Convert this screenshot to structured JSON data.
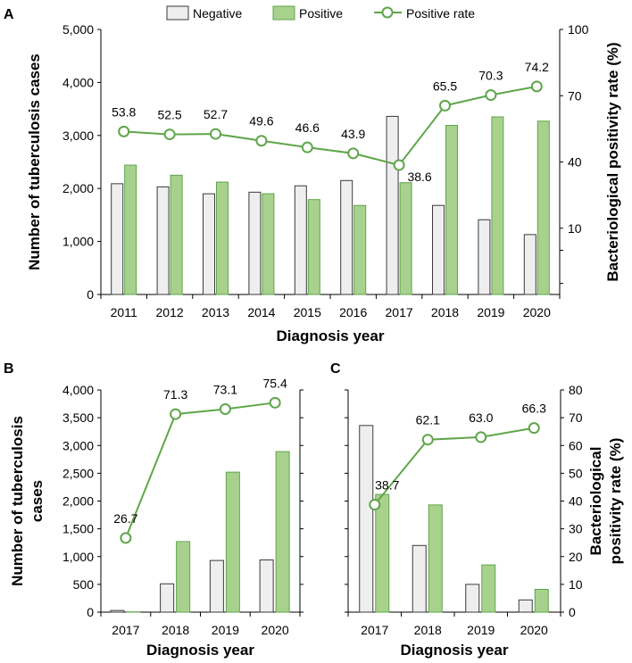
{
  "legend": {
    "negative": "Negative",
    "positive": "Positive",
    "rate": "Positive rate"
  },
  "colors": {
    "negative_fill": "#eeeeee",
    "negative_stroke": "#3a3a3a",
    "positive_fill": "#a9d18e",
    "positive_stroke": "#5fa64a",
    "line": "#5fa64a",
    "marker_fill": "#ffffff"
  },
  "chart_data": [
    {
      "panel": "A",
      "type": "bar",
      "categories": [
        "2011",
        "2012",
        "2013",
        "2014",
        "2015",
        "2016",
        "2017",
        "2018",
        "2019",
        "2020"
      ],
      "series": [
        {
          "name": "Negative",
          "values": [
            2090,
            2030,
            1900,
            1930,
            2050,
            2150,
            3360,
            1680,
            1410,
            1130
          ]
        },
        {
          "name": "Positive",
          "values": [
            2440,
            2250,
            2120,
            1900,
            1790,
            1680,
            2110,
            3190,
            3350,
            3270
          ]
        },
        {
          "name": "Positive rate",
          "axis": "right",
          "values": [
            53.8,
            52.5,
            52.7,
            49.6,
            46.6,
            43.9,
            38.6,
            65.5,
            70.3,
            74.2
          ],
          "labels": [
            "53.8",
            "52.5",
            "52.7",
            "49.6",
            "46.6",
            "43.9",
            "38.6",
            "65.5",
            "70.3",
            "74.2"
          ]
        }
      ],
      "xlabel": "Diagnosis year",
      "ylabel": "Number of tuberculosis cases",
      "ylabel_right": "Bacteriological positivity rate (%)",
      "ylim": [
        0,
        5000
      ],
      "y_ticks": [
        "0",
        "1,000",
        "2,000",
        "3,000",
        "4,000",
        "5,000"
      ],
      "ylim_right": [
        -20,
        100
      ],
      "y_ticks_right": [
        "10",
        "40",
        "70",
        "100"
      ],
      "y_ticks_right_values": [
        10,
        40,
        70,
        100
      ]
    },
    {
      "panel": "B",
      "type": "bar",
      "categories": [
        "2017",
        "2018",
        "2019",
        "2020"
      ],
      "series": [
        {
          "name": "Negative",
          "values": [
            30,
            510,
            930,
            940
          ]
        },
        {
          "name": "Positive",
          "values": [
            5,
            1270,
            2520,
            2890
          ]
        },
        {
          "name": "Positive rate",
          "axis": "right",
          "values": [
            26.7,
            71.3,
            73.1,
            75.4
          ],
          "labels": [
            "26.7",
            "71.3",
            "73.1",
            "75.4"
          ]
        }
      ],
      "xlabel": "Diagnosis year",
      "ylabel": "Number of tuberculosis cases",
      "ylim": [
        0,
        4000
      ],
      "y_ticks": [
        "0",
        "500",
        "1,000",
        "1,500",
        "2,000",
        "2,500",
        "3,000",
        "3,500",
        "4,000"
      ],
      "ylim_right": [
        0,
        80
      ]
    },
    {
      "panel": "C",
      "type": "bar",
      "categories": [
        "2017",
        "2018",
        "2019",
        "2020"
      ],
      "series": [
        {
          "name": "Negative",
          "values": [
            3360,
            1200,
            500,
            220
          ]
        },
        {
          "name": "Positive",
          "values": [
            2120,
            1930,
            850,
            410
          ]
        },
        {
          "name": "Positive rate",
          "axis": "right",
          "values": [
            38.7,
            62.1,
            63.0,
            66.3
          ],
          "labels": [
            "38.7",
            "62.1",
            "63.0",
            "66.3"
          ]
        }
      ],
      "xlabel": "Diagnosis year",
      "ylabel_right": "Bacteriological positivity rate (%)",
      "ylim": [
        0,
        4000
      ],
      "ylim_right": [
        0,
        80
      ],
      "y_ticks_right": [
        "0",
        "10",
        "20",
        "30",
        "40",
        "50",
        "60",
        "70",
        "80"
      ]
    }
  ]
}
